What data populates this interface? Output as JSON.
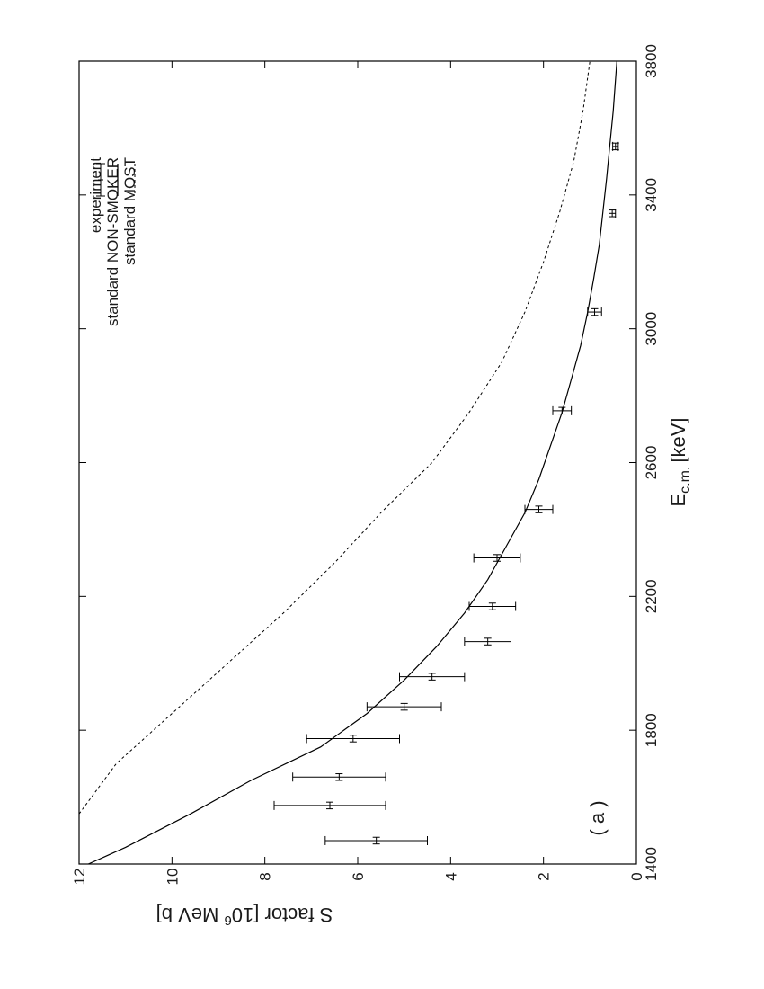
{
  "chart_data": {
    "type": "scatter",
    "orientation": "rotated-90-counterclockwise",
    "xlabel": "E",
    "xlabel_subscript": "c.m.",
    "xlabel_units": "[keV]",
    "ylabel_prefix": "S factor [10",
    "ylabel_superscript": "6",
    "ylabel_suffix": " MeV b]",
    "xlim": [
      1400,
      3800
    ],
    "ylim": [
      0,
      12
    ],
    "x_ticks": [
      1400,
      1800,
      2200,
      2600,
      3000,
      3400,
      3800
    ],
    "y_ticks": [
      0,
      2,
      4,
      6,
      8,
      10,
      12
    ],
    "panel_label": "( a )",
    "legend_position": "top-right",
    "grid": false,
    "series": [
      {
        "name": "experiment",
        "kind": "points-with-errorbars",
        "points": [
          {
            "x": 1470,
            "y": 5.6,
            "xerr": 10,
            "yerr": 1.1
          },
          {
            "x": 1575,
            "y": 6.6,
            "xerr": 10,
            "yerr": 1.2
          },
          {
            "x": 1660,
            "y": 6.4,
            "xerr": 10,
            "yerr": 1.0
          },
          {
            "x": 1775,
            "y": 6.1,
            "xerr": 10,
            "yerr": 1.0
          },
          {
            "x": 1870,
            "y": 5.0,
            "xerr": 10,
            "yerr": 0.8
          },
          {
            "x": 1960,
            "y": 4.4,
            "xerr": 10,
            "yerr": 0.7
          },
          {
            "x": 2065,
            "y": 3.2,
            "xerr": 10,
            "yerr": 0.5
          },
          {
            "x": 2170,
            "y": 3.1,
            "xerr": 10,
            "yerr": 0.5
          },
          {
            "x": 2315,
            "y": 3.0,
            "xerr": 10,
            "yerr": 0.5
          },
          {
            "x": 2460,
            "y": 2.1,
            "xerr": 10,
            "yerr": 0.3
          },
          {
            "x": 2755,
            "y": 1.6,
            "xerr": 10,
            "yerr": 0.2
          },
          {
            "x": 3050,
            "y": 0.9,
            "xerr": 10,
            "yerr": 0.15
          },
          {
            "x": 3345,
            "y": 0.52,
            "xerr": 10,
            "yerr": 0.07
          },
          {
            "x": 3545,
            "y": 0.45,
            "xerr": 10,
            "yerr": 0.06
          }
        ]
      },
      {
        "name": "standard NON-SMOKER",
        "kind": "line",
        "style": "solid",
        "x": [
          1400,
          1450,
          1550,
          1650,
          1750,
          1850,
          1950,
          2050,
          2150,
          2250,
          2350,
          2450,
          2550,
          2650,
          2750,
          2850,
          2950,
          3050,
          3150,
          3250,
          3350,
          3450,
          3550,
          3650,
          3800
        ],
        "y": [
          11.8,
          11.0,
          9.6,
          8.3,
          6.8,
          5.8,
          5.0,
          4.3,
          3.7,
          3.2,
          2.8,
          2.4,
          2.1,
          1.85,
          1.6,
          1.4,
          1.2,
          1.05,
          0.92,
          0.8,
          0.72,
          0.64,
          0.57,
          0.5,
          0.42
        ]
      },
      {
        "name": "standard MOST",
        "kind": "line",
        "style": "dashed",
        "x": [
          1550,
          1700,
          1850,
          2000,
          2150,
          2300,
          2450,
          2600,
          2750,
          2900,
          3050,
          3200,
          3350,
          3500,
          3650,
          3800
        ],
        "y": [
          12.0,
          11.2,
          10.0,
          8.8,
          7.6,
          6.5,
          5.5,
          4.4,
          3.6,
          2.9,
          2.4,
          2.0,
          1.65,
          1.35,
          1.15,
          1.0
        ]
      }
    ]
  }
}
